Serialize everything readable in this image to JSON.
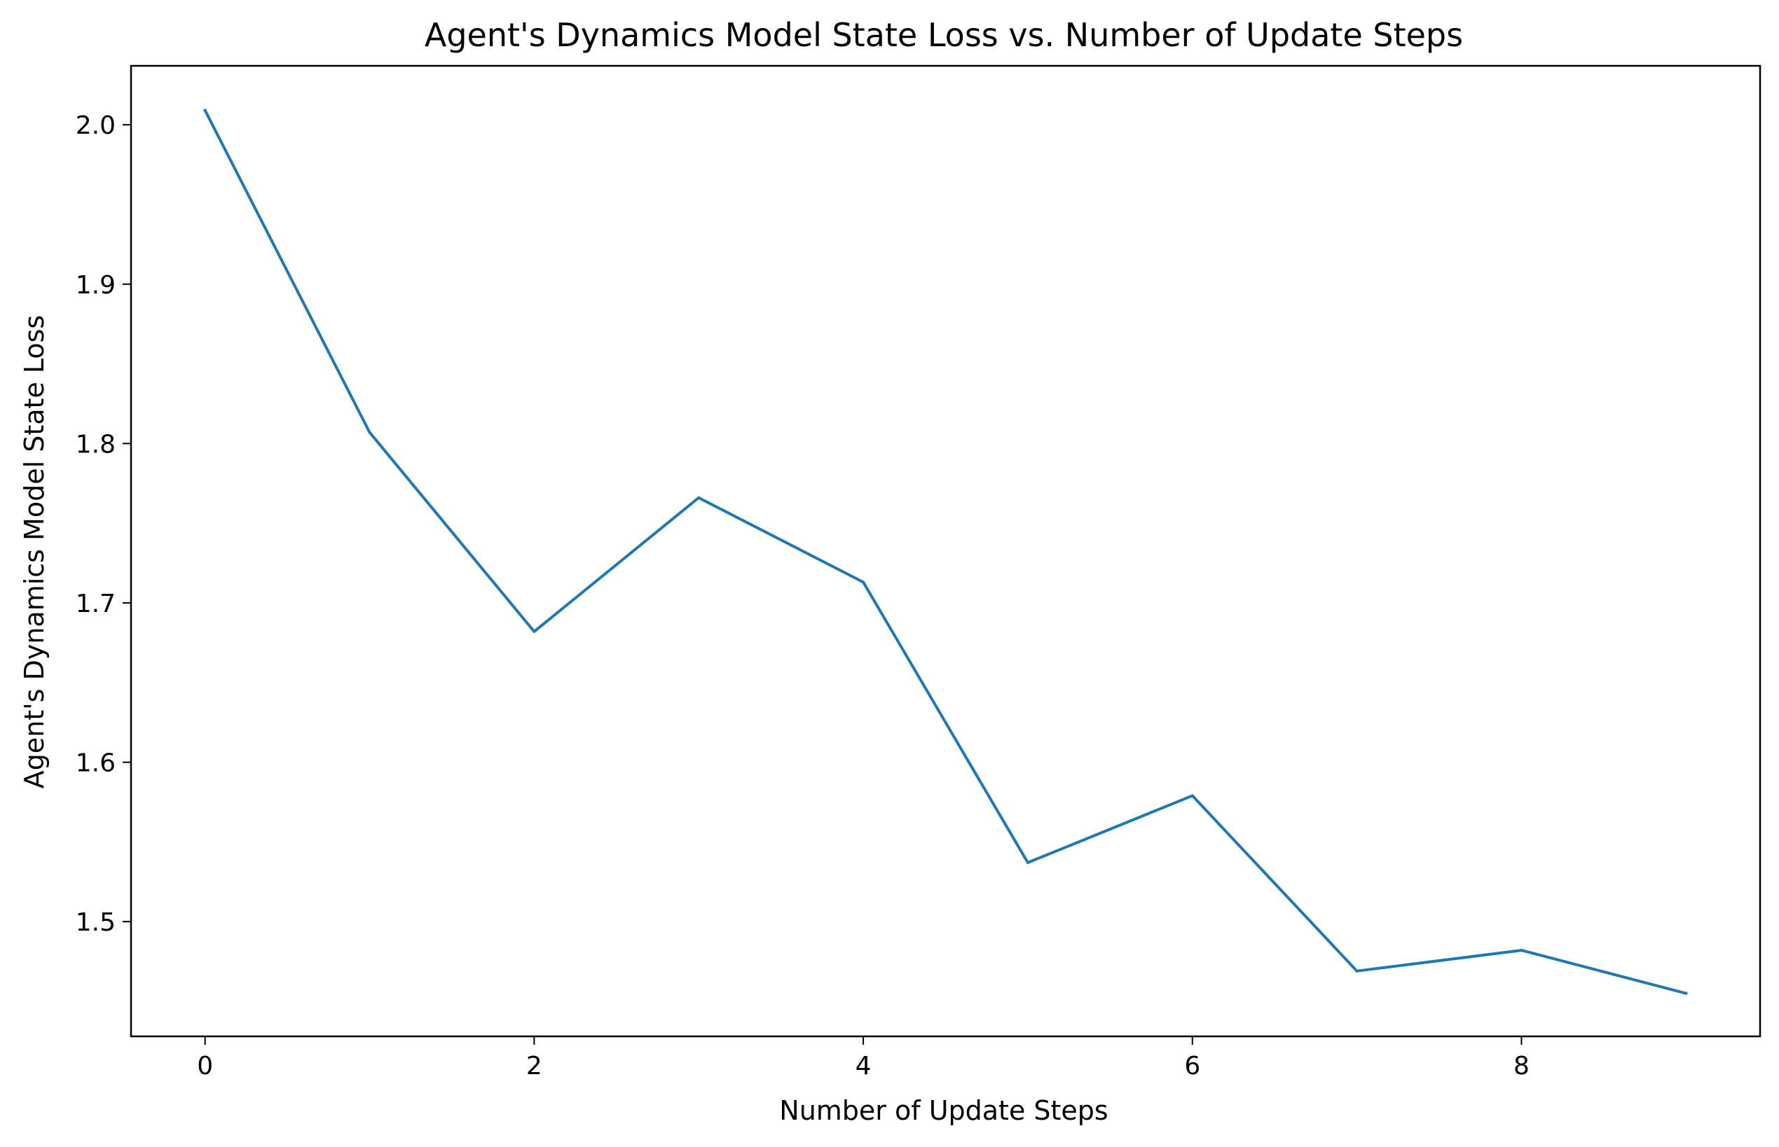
{
  "chart_data": {
    "type": "line",
    "title": "Agent's Dynamics Model State Loss vs. Number of Update Steps",
    "xlabel": "Number of Update Steps",
    "ylabel": "Agent's Dynamics Model State Loss",
    "xlim": [
      -0.45,
      9.45
    ],
    "ylim": [
      1.428,
      2.037
    ],
    "xticks": [
      0,
      2,
      4,
      6,
      8
    ],
    "yticks": [
      1.5,
      1.6,
      1.7,
      1.8,
      1.9,
      2.0
    ],
    "xtick_labels": [
      "0",
      "2",
      "4",
      "6",
      "8"
    ],
    "ytick_labels": [
      "1.5",
      "1.6",
      "1.7",
      "1.8",
      "1.9",
      "2.0"
    ],
    "grid": false,
    "series": [
      {
        "color": "#1f77b4",
        "x": [
          0,
          1,
          2,
          3,
          4,
          5,
          6,
          7,
          8,
          9
        ],
        "y": [
          2.009,
          1.807,
          1.682,
          1.766,
          1.713,
          1.537,
          1.579,
          1.469,
          1.482,
          1.455
        ]
      }
    ]
  }
}
